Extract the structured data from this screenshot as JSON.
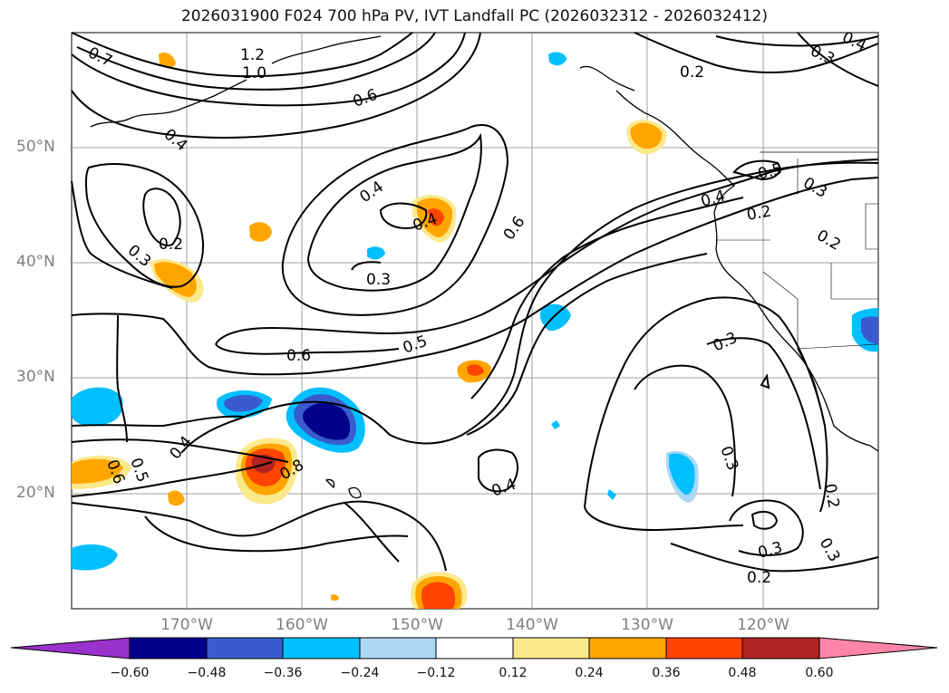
{
  "title": "2026031900 F024 700 hPa PV, IVT Landfall PC (2026032312 - 2026032412)",
  "lat_labels": [
    "50°N",
    "40°N",
    "30°N",
    "20°N"
  ],
  "lon_labels": [
    "170°W",
    "160°W",
    "150°W",
    "140°W",
    "130°W",
    "120°W"
  ],
  "contour_labels": [
    "1.2",
    "1.0",
    "0.7",
    "0.6",
    "0.4",
    "0.4",
    "0.4",
    "0.2",
    "0.3",
    "0.3",
    "0.6",
    "0.5",
    "0.6",
    "0.6",
    "0.5",
    "0.4",
    "0.4",
    "0.2",
    "0.4",
    "0.5",
    "0.3",
    "0.2",
    "0.2",
    "0.3",
    "0.3",
    "0.3",
    "0.2",
    "0.3",
    "0.2",
    "0.3",
    "0.4",
    "0.8"
  ],
  "colorbar": {
    "ticks": [
      "−0.60",
      "−0.48",
      "−0.36",
      "−0.24",
      "−0.12",
      "0.12",
      "0.24",
      "0.36",
      "0.48",
      "0.60"
    ],
    "colors": [
      "#9932cc",
      "#00008b",
      "#3a5bcc",
      "#00bfff",
      "#add8f5",
      "#ffffff",
      "#fce98c",
      "#ffa500",
      "#ff4500",
      "#b22222",
      "#ff85a8"
    ]
  }
}
